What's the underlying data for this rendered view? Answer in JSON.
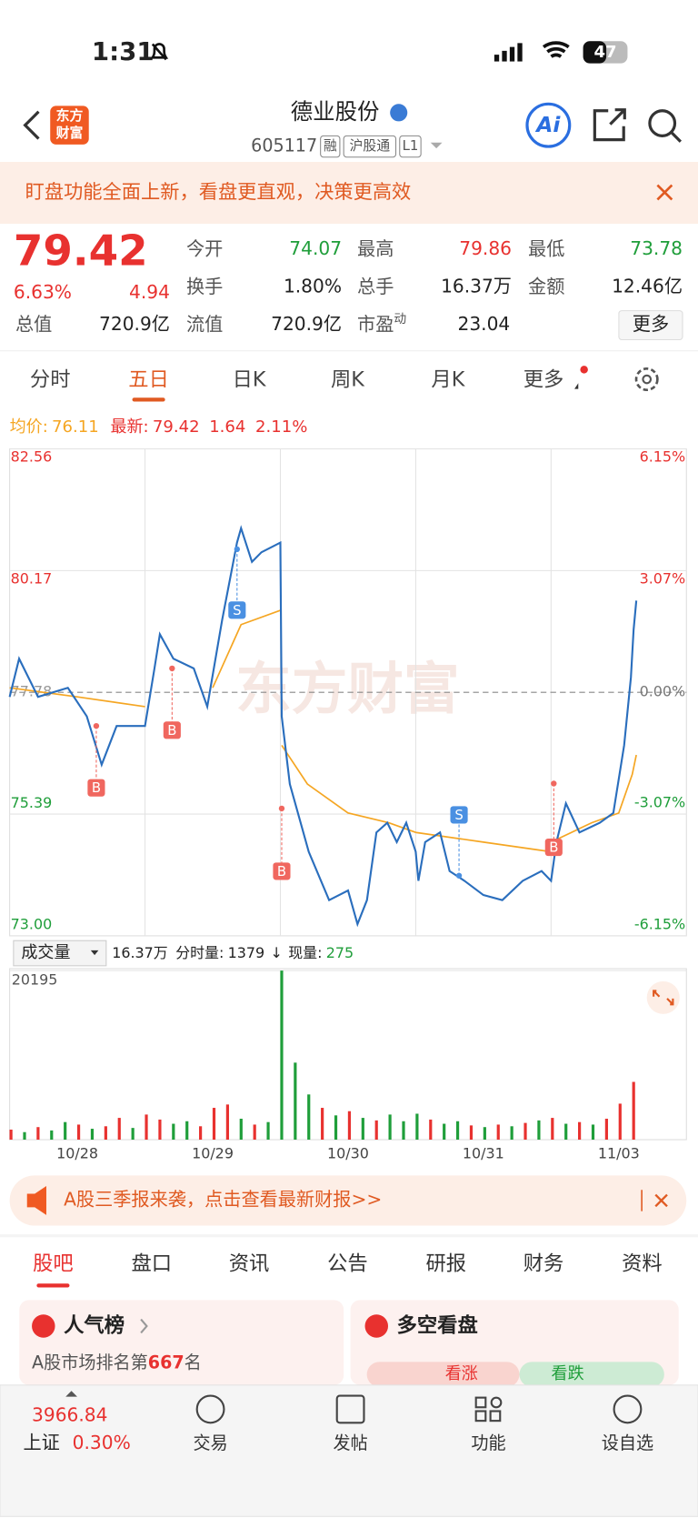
{
  "status": {
    "time": "1:31",
    "battery": "47"
  },
  "header": {
    "logo": [
      "东方",
      "财富"
    ],
    "title": "德业股份",
    "code": "605117",
    "tags": [
      "融",
      "沪股通",
      "L1"
    ],
    "ai": "Ai"
  },
  "banner": {
    "text": "盯盘功能全面上新，看盘更直观，决策更高效"
  },
  "quote": {
    "price": "79.42",
    "change_pct": "6.63%",
    "change": "4.94",
    "fields": [
      {
        "label": "今开",
        "value": "74.07"
      },
      {
        "label": "最高",
        "value": "79.86"
      },
      {
        "label": "最低",
        "value": "73.78"
      },
      {
        "label": "换手",
        "value": "1.80%"
      },
      {
        "label": "总手",
        "value": "16.37万"
      },
      {
        "label": "金额",
        "value": "12.46亿"
      },
      {
        "label": "总值",
        "value": "720.9亿"
      },
      {
        "label": "流值",
        "value": "720.9亿"
      },
      {
        "label": "市盈",
        "sup": "动",
        "value": "23.04"
      }
    ],
    "more": "更多"
  },
  "tabs": {
    "items": [
      "分时",
      "五日",
      "日K",
      "周K",
      "月K",
      "更多"
    ],
    "active": 1
  },
  "legend": {
    "avg_label": "均价:",
    "avg": "76.11",
    "last_label": "最新:",
    "last": "79.42",
    "change": "1.64",
    "change_pct": "2.11%"
  },
  "volume_header": {
    "select": "成交量",
    "total": "16.37万",
    "minute_label": "分时量:",
    "minute": "1379",
    "arrow": "↓",
    "now_label": "现量:",
    "now": "275"
  },
  "chart_data": [
    {
      "type": "line",
      "watermark": "东方财富",
      "xlim": [
        0,
        5
      ],
      "days": [
        "10/28",
        "10/29",
        "10/30",
        "10/31",
        "11/03"
      ],
      "ylim": [
        73,
        82.56
      ],
      "yticks": [
        82.56,
        80.17,
        77.78,
        75.39,
        {
          "value": 73,
          "label": "73.00"
        }
      ],
      "y2lim": [
        -6.15,
        6.15
      ],
      "y2ticks": [
        {
          "value": 6.15,
          "label": "6.15%"
        },
        {
          "value": 3.07,
          "label": "3.07%"
        },
        {
          "value": 0,
          "label": "0.00%"
        },
        {
          "value": -3.07,
          "label": "-3.07%"
        },
        {
          "value": -6.15,
          "label": "-6.15%"
        }
      ],
      "series": [
        {
          "color": "#2a6ebd",
          "x": [
            0,
            0.07,
            0.21,
            0.43,
            0.57,
            0.68,
            0.79,
            1.0,
            1.07,
            1.11,
            1.21,
            1.36,
            1.46,
            1.57,
            1.68,
            1.71,
            1.79,
            1.86,
            2.0,
            2.01,
            2.07,
            2.21,
            2.36,
            2.5,
            2.57,
            2.64,
            2.71,
            2.79,
            2.86,
            2.93,
            3.0,
            3.02,
            3.07,
            3.18,
            3.25,
            3.36,
            3.5,
            3.64,
            3.79,
            3.93,
            4.0,
            4.04,
            4.11,
            4.21,
            4.36,
            4.46,
            4.54,
            4.59,
            4.61,
            4.63
          ],
          "values": [
            77.69,
            78.44,
            77.69,
            77.87,
            77.31,
            76.36,
            77.12,
            77.12,
            78.25,
            78.92,
            78.44,
            78.25,
            77.5,
            79.2,
            80.72,
            81.0,
            80.34,
            80.53,
            80.72,
            77.31,
            75.98,
            74.65,
            73.7,
            73.89,
            73.23,
            73.7,
            75.03,
            75.22,
            74.84,
            75.22,
            74.65,
            74.08,
            74.84,
            75.03,
            74.27,
            74.08,
            73.8,
            73.7,
            74.08,
            74.27,
            74.08,
            74.84,
            75.6,
            75.03,
            75.22,
            75.41,
            76.74,
            78.07,
            79.01,
            79.58
          ]
        },
        {
          "color": "#f5a623",
          "x": [
            0,
            0.5,
            1.0,
            1.0,
            1.5,
            1.71,
            2.0,
            2.01,
            2.01,
            2.2,
            2.5,
            2.8,
            3.0,
            3.0,
            3.0,
            3.5,
            4.0,
            4.0,
            4.0,
            4.3,
            4.5,
            4.6,
            4.63
          ],
          "values": [
            77.87,
            77.69,
            77.5,
            null,
            77.87,
            79.11,
            79.39,
            null,
            76.74,
            75.98,
            75.41,
            75.22,
            75.03,
            null,
            75.03,
            74.84,
            74.65,
            null,
            74.84,
            75.22,
            75.41,
            76.17,
            76.55
          ]
        }
      ],
      "annotations": [
        {
          "text": "B",
          "x": 0.64,
          "y": 77.12
        },
        {
          "text": "B",
          "x": 1.2,
          "y": 78.25
        },
        {
          "text": "S",
          "x": 1.68,
          "y": 80.59
        },
        {
          "text": "B",
          "x": 2.01,
          "y": 75.5
        },
        {
          "text": "S",
          "x": 3.32,
          "y": 74.18
        },
        {
          "text": "B",
          "x": 4.02,
          "y": 75.99
        }
      ]
    },
    {
      "type": "bar",
      "xlim": [
        0,
        5
      ],
      "ylim": [
        0,
        20195
      ],
      "yticks": [
        20195
      ],
      "x": [
        0.01,
        0.11,
        0.21,
        0.31,
        0.41,
        0.51,
        0.61,
        0.71,
        0.81,
        0.91,
        1.01,
        1.11,
        1.21,
        1.31,
        1.41,
        1.51,
        1.61,
        1.71,
        1.81,
        1.91,
        2.01,
        2.11,
        2.21,
        2.31,
        2.41,
        2.51,
        2.61,
        2.71,
        2.81,
        2.91,
        3.01,
        3.11,
        3.21,
        3.31,
        3.41,
        3.51,
        3.61,
        3.71,
        3.81,
        3.91,
        4.01,
        4.11,
        4.21,
        4.31,
        4.41,
        4.51,
        4.61
      ],
      "values": [
        1200,
        900,
        1500,
        1100,
        2100,
        1800,
        1300,
        1600,
        2600,
        1400,
        3000,
        2400,
        1900,
        2200,
        1600,
        3800,
        4200,
        2500,
        1800,
        2100,
        20195,
        9200,
        5400,
        3800,
        2900,
        3400,
        2600,
        2300,
        3000,
        2200,
        3100,
        2400,
        1900,
        2200,
        1700,
        1500,
        1800,
        1600,
        2000,
        2300,
        2600,
        1900,
        2100,
        1800,
        2500,
        4300,
        6900
      ],
      "colors": [
        "#e8312f",
        "#1f9e3a",
        "#e8312f",
        "#1f9e3a",
        "#1f9e3a",
        "#e8312f",
        "#1f9e3a",
        "#e8312f",
        "#e8312f",
        "#1f9e3a",
        "#e8312f",
        "#e8312f",
        "#1f9e3a",
        "#1f9e3a",
        "#e8312f",
        "#e8312f",
        "#e8312f",
        "#1f9e3a",
        "#e8312f",
        "#1f9e3a",
        "#1f9e3a",
        "#1f9e3a",
        "#1f9e3a",
        "#e8312f",
        "#1f9e3a",
        "#e8312f",
        "#1f9e3a",
        "#e8312f",
        "#1f9e3a",
        "#1f9e3a",
        "#1f9e3a",
        "#e8312f",
        "#1f9e3a",
        "#1f9e3a",
        "#e8312f",
        "#1f9e3a",
        "#e8312f",
        "#1f9e3a",
        "#e8312f",
        "#1f9e3a",
        "#e8312f",
        "#1f9e3a",
        "#e8312f",
        "#1f9e3a",
        "#e8312f",
        "#e8312f",
        "#e8312f"
      ]
    }
  ],
  "notice": {
    "text": "A股三季报来袭，点击查看最新财报>>"
  },
  "sections": {
    "items": [
      "股吧",
      "盘口",
      "资讯",
      "公告",
      "研报",
      "财务",
      "资料"
    ],
    "active": 0
  },
  "cards": {
    "popularity": {
      "title": "人气榜",
      "prefix": "A股市场排名第",
      "rank": "667",
      "suffix": "名"
    },
    "sentiment": {
      "title": "多空看盘",
      "up": "看涨",
      "down": "看跌"
    }
  },
  "bottom_nav": {
    "index": "3966.84",
    "name": "上证",
    "pct": "0.30%",
    "items": [
      "交易",
      "发帖",
      "功能",
      "设自选"
    ]
  }
}
